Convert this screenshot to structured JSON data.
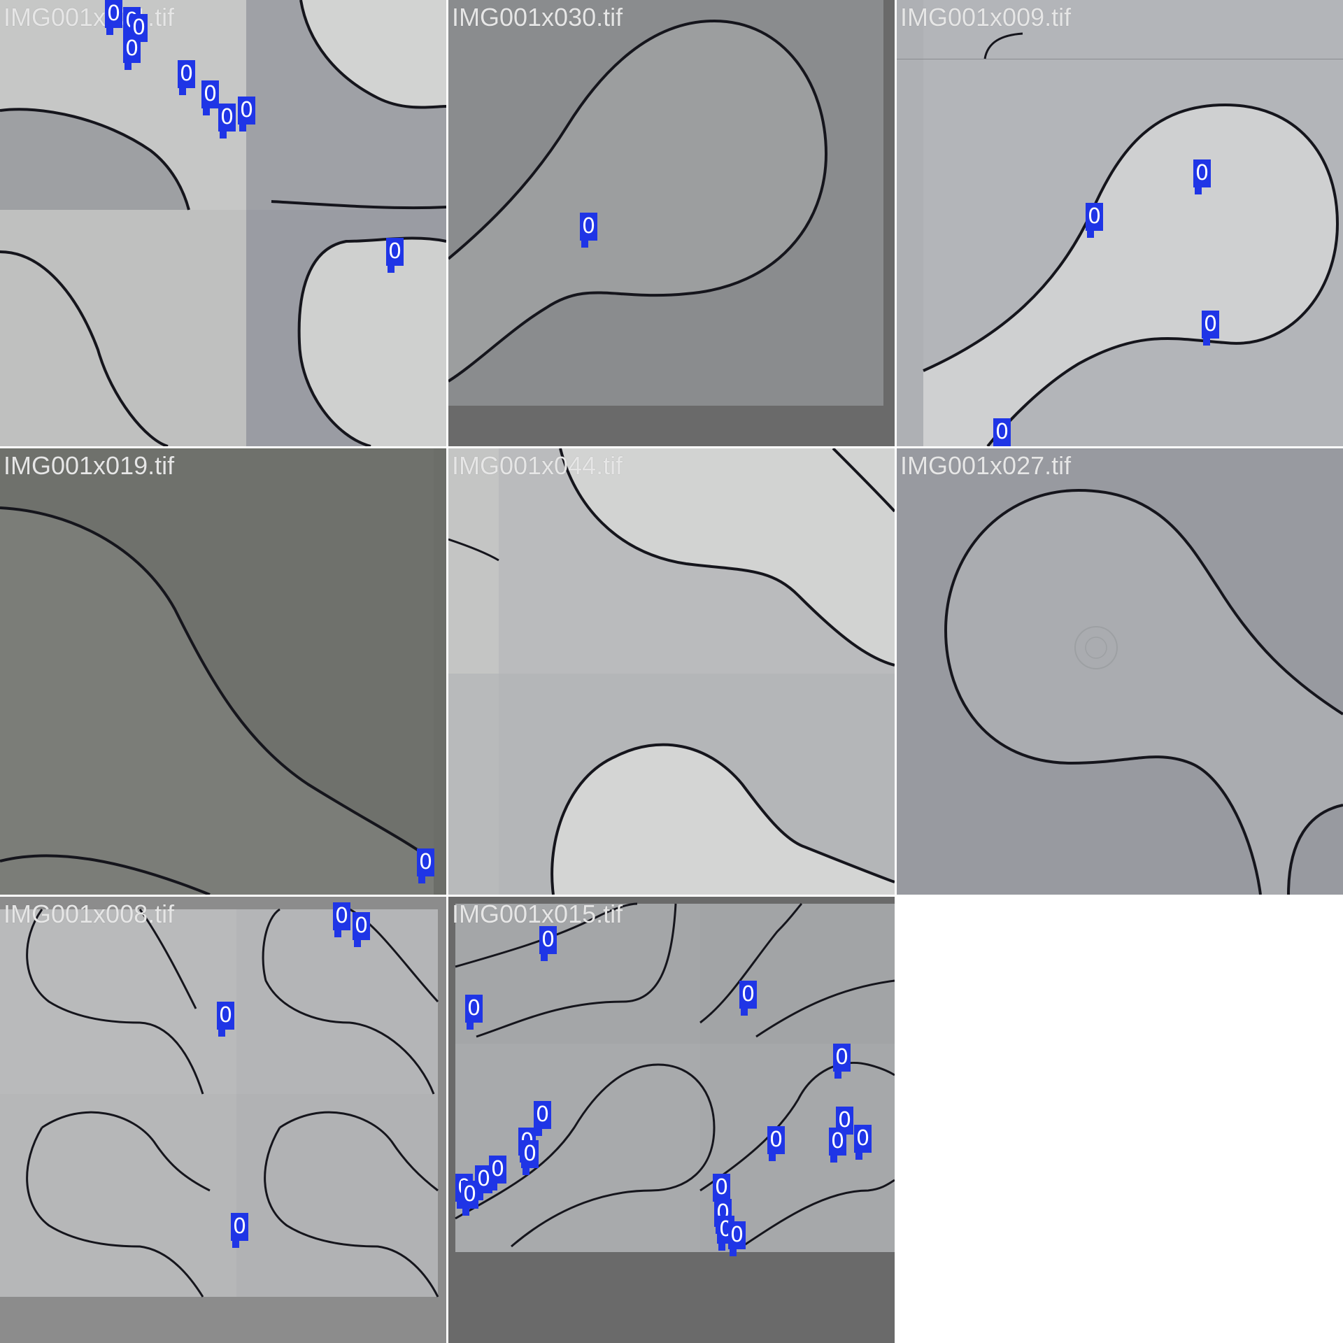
{
  "tiles": [
    {
      "label": "IMG001x031.tif"
    },
    {
      "label": "IMG001x030.tif"
    },
    {
      "label": "IMG001x009.tif"
    },
    {
      "label": "IMG001x019.tif"
    },
    {
      "label": "IMG001x044.tif"
    },
    {
      "label": "IMG001x027.tif"
    },
    {
      "label": "IMG001x008.tif"
    },
    {
      "label": "IMG001x015.tif"
    }
  ],
  "detection_class_label": "0",
  "colors": {
    "page_background": "#ffffff",
    "detection_box": "#1f35e6",
    "detection_text": "#ffffff",
    "cell_outline": "#15151c",
    "label_text": "#e6e6e6"
  }
}
